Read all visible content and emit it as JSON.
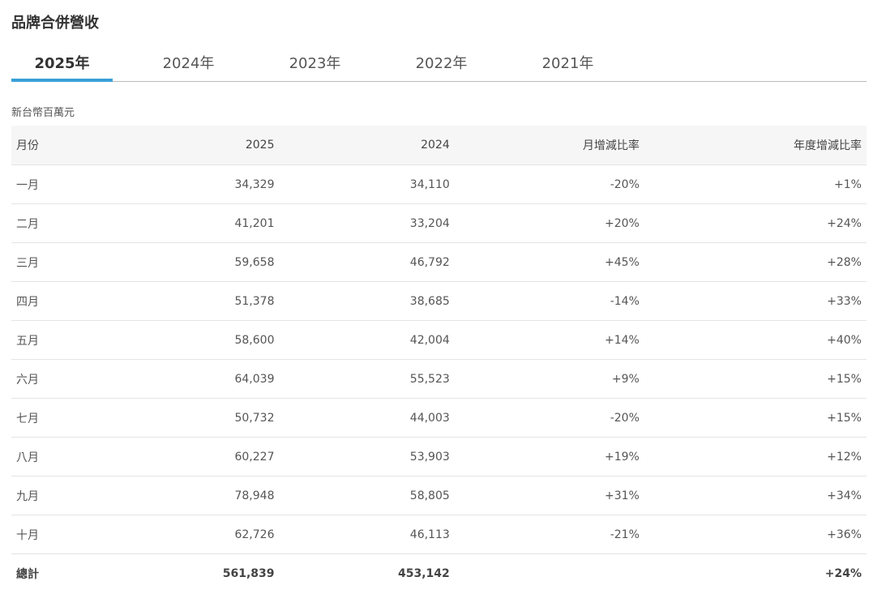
{
  "header": {
    "title": "品牌合併營收"
  },
  "tabs": [
    "2025年",
    "2024年",
    "2023年",
    "2022年",
    "2021年"
  ],
  "active_tab": 0,
  "unit": "新台幣百萬元",
  "table": {
    "columns": [
      "月份",
      "2025",
      "2024",
      "月增減比率",
      "年度增減比率"
    ],
    "rows": [
      [
        "一月",
        "34,329",
        "34,110",
        "-20%",
        "+1%"
      ],
      [
        "二月",
        "41,201",
        "33,204",
        "+20%",
        "+24%"
      ],
      [
        "三月",
        "59,658",
        "46,792",
        "+45%",
        "+28%"
      ],
      [
        "四月",
        "51,378",
        "38,685",
        "-14%",
        "+33%"
      ],
      [
        "五月",
        "58,600",
        "42,004",
        "+14%",
        "+40%"
      ],
      [
        "六月",
        "64,039",
        "55,523",
        "+9%",
        "+15%"
      ],
      [
        "七月",
        "50,732",
        "44,003",
        "-20%",
        "+15%"
      ],
      [
        "八月",
        "60,227",
        "53,903",
        "+19%",
        "+12%"
      ],
      [
        "九月",
        "78,948",
        "58,805",
        "+31%",
        "+34%"
      ],
      [
        "十月",
        "62,726",
        "46,113",
        "-21%",
        "+36%"
      ],
      [
        "總計",
        "561,839",
        "453,142",
        null,
        "+24%"
      ]
    ]
  }
}
